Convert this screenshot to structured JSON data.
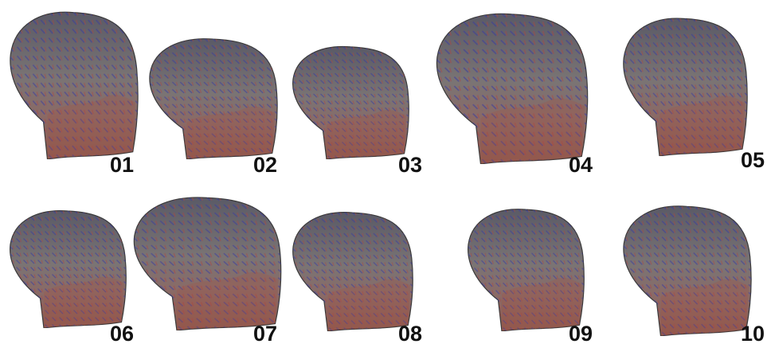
{
  "panels": [
    {
      "label": "01"
    },
    {
      "label": "02"
    },
    {
      "label": "03"
    },
    {
      "label": "04"
    },
    {
      "label": "05"
    },
    {
      "label": "06"
    },
    {
      "label": "07"
    },
    {
      "label": "08"
    },
    {
      "label": "09"
    },
    {
      "label": "10"
    }
  ]
}
